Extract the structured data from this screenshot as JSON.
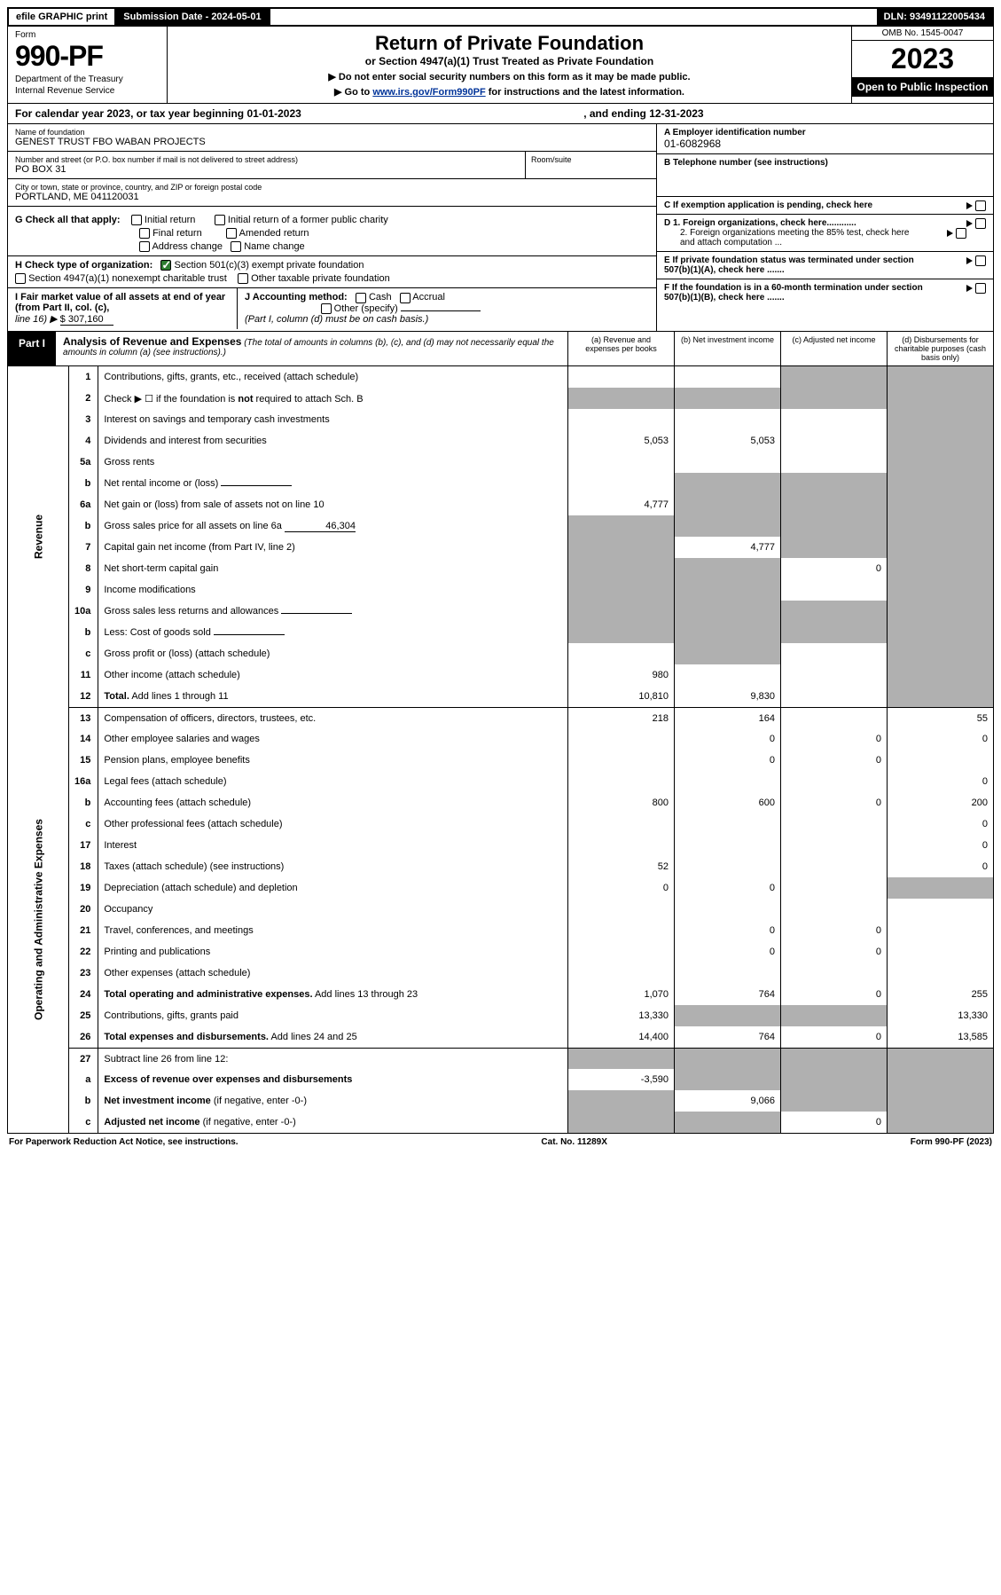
{
  "topbar": {
    "efile": "efile GRAPHIC print",
    "sub_label": "Submission Date - 2024-05-01",
    "dln": "DLN: 93491122005434"
  },
  "header": {
    "form_label": "Form",
    "form_num": "990-PF",
    "dept1": "Department of the Treasury",
    "dept2": "Internal Revenue Service",
    "title": "Return of Private Foundation",
    "subtitle": "or Section 4947(a)(1) Trust Treated as Private Foundation",
    "note1": "▶ Do not enter social security numbers on this form as it may be made public.",
    "note2_pre": "▶ Go to ",
    "note2_link": "www.irs.gov/Form990PF",
    "note2_post": " for instructions and the latest information.",
    "omb": "OMB No. 1545-0047",
    "year": "2023",
    "open": "Open to Public Inspection"
  },
  "calrow": {
    "pre": "For calendar year 2023, or tax year beginning 01-01-2023",
    "post": ", and ending 12-31-2023"
  },
  "info": {
    "name_lbl": "Name of foundation",
    "name_val": "GENEST TRUST FBO WABAN PROJECTS",
    "addr_lbl": "Number and street (or P.O. box number if mail is not delivered to street address)",
    "room_lbl": "Room/suite",
    "addr_val": "PO BOX 31",
    "city_lbl": "City or town, state or province, country, and ZIP or foreign postal code",
    "city_val": "PORTLAND, ME  041120031",
    "a_lbl": "A Employer identification number",
    "a_val": "01-6082968",
    "b_lbl": "B Telephone number (see instructions)",
    "c_lbl": "C If exemption application is pending, check here",
    "d1_lbl": "D 1. Foreign organizations, check here............",
    "d2_lbl": "2. Foreign organizations meeting the 85% test, check here and attach computation ...",
    "e_lbl": "E  If private foundation status was terminated under section 507(b)(1)(A), check here .......",
    "f_lbl": "F  If the foundation is in a 60-month termination under section 507(b)(1)(B), check here ......."
  },
  "g": {
    "g_lbl": "G Check all that apply:",
    "g_opts": [
      "Initial return",
      "Final return",
      "Address change",
      "Initial return of a former public charity",
      "Amended return",
      "Name change"
    ],
    "h_lbl": "H Check type of organization:",
    "h1": "Section 501(c)(3) exempt private foundation",
    "h2": "Section 4947(a)(1) nonexempt charitable trust",
    "h3": "Other taxable private foundation",
    "i_lbl": "I Fair market value of all assets at end of year (from Part II, col. (c),",
    "i_line": "line 16) ▶",
    "i_val": "$  307,160",
    "j_lbl": "J Accounting method:",
    "j_opts": [
      "Cash",
      "Accrual"
    ],
    "j_other": "Other (specify)",
    "j_note": "(Part I, column (d) must be on cash basis.)"
  },
  "part": {
    "label": "Part I",
    "title": "Analysis of Revenue and Expenses",
    "title_note": "(The total of amounts in columns (b), (c), and (d) may not necessarily equal the amounts in column (a) (see instructions).)",
    "col_a": "(a)   Revenue and expenses per books",
    "col_b": "(b)   Net investment income",
    "col_c": "(c)   Adjusted net income",
    "col_d": "(d)  Disbursements for charitable purposes (cash basis only)"
  },
  "side": {
    "rev": "Revenue",
    "exp": "Operating and Administrative Expenses"
  },
  "rows": [
    {
      "n": "1",
      "d": "Contributions, gifts, grants, etc., received (attach schedule)",
      "a": "",
      "b": "",
      "c": "",
      "dd": "",
      "shC": true,
      "shD": true
    },
    {
      "n": "2",
      "d": "Check ▶ ☐ if the foundation is <b>not</b> required to attach Sch. B",
      "a": "",
      "b": "",
      "c": "",
      "dd": "",
      "shA": true,
      "shB": true,
      "shC": true,
      "shD": true
    },
    {
      "n": "3",
      "d": "Interest on savings and temporary cash investments",
      "a": "",
      "b": "",
      "c": "",
      "dd": "",
      "shD": true
    },
    {
      "n": "4",
      "d": "Dividends and interest from securities",
      "a": "5,053",
      "b": "5,053",
      "c": "",
      "dd": "",
      "shD": true
    },
    {
      "n": "5a",
      "d": "Gross rents",
      "a": "",
      "b": "",
      "c": "",
      "dd": "",
      "shD": true
    },
    {
      "n": "b",
      "d": "Net rental income or (loss)",
      "a": "",
      "b": "",
      "c": "",
      "dd": "",
      "shA": false,
      "shB": true,
      "shC": true,
      "shD": true,
      "inline": true
    },
    {
      "n": "6a",
      "d": "Net gain or (loss) from sale of assets not on line 10",
      "a": "4,777",
      "b": "",
      "c": "",
      "dd": "",
      "shB": true,
      "shC": true,
      "shD": true
    },
    {
      "n": "b",
      "d": "Gross sales price for all assets on line 6a",
      "a": "",
      "b": "",
      "c": "",
      "dd": "",
      "inline_val": "46,304",
      "shA": true,
      "shB": true,
      "shC": true,
      "shD": true
    },
    {
      "n": "7",
      "d": "Capital gain net income (from Part IV, line 2)",
      "a": "",
      "b": "4,777",
      "c": "",
      "dd": "",
      "shA": true,
      "shC": true,
      "shD": true
    },
    {
      "n": "8",
      "d": "Net short-term capital gain",
      "a": "",
      "b": "",
      "c": "0",
      "dd": "",
      "shA": true,
      "shB": true,
      "shD": true
    },
    {
      "n": "9",
      "d": "Income modifications",
      "a": "",
      "b": "",
      "c": "",
      "dd": "",
      "shA": true,
      "shB": true,
      "shD": true
    },
    {
      "n": "10a",
      "d": "Gross sales less returns and allowances",
      "a": "",
      "b": "",
      "c": "",
      "dd": "",
      "inline": true,
      "shA": true,
      "shB": true,
      "shC": true,
      "shD": true
    },
    {
      "n": "b",
      "d": "Less: Cost of goods sold",
      "a": "",
      "b": "",
      "c": "",
      "dd": "",
      "inline": true,
      "shA": true,
      "shB": true,
      "shC": true,
      "shD": true
    },
    {
      "n": "c",
      "d": "Gross profit or (loss) (attach schedule)",
      "a": "",
      "b": "",
      "c": "",
      "dd": "",
      "shA": false,
      "shB": true,
      "shD": true
    },
    {
      "n": "11",
      "d": "Other income (attach schedule)",
      "a": "980",
      "b": "",
      "c": "",
      "dd": "",
      "shD": true
    },
    {
      "n": "12",
      "d": "<b>Total.</b> Add lines 1 through 11",
      "a": "10,810",
      "b": "9,830",
      "c": "",
      "dd": "",
      "shD": true,
      "sep": true
    },
    {
      "n": "13",
      "d": "Compensation of officers, directors, trustees, etc.",
      "a": "218",
      "b": "164",
      "c": "",
      "dd": "55"
    },
    {
      "n": "14",
      "d": "Other employee salaries and wages",
      "a": "",
      "b": "0",
      "c": "0",
      "dd": "0"
    },
    {
      "n": "15",
      "d": "Pension plans, employee benefits",
      "a": "",
      "b": "0",
      "c": "0",
      "dd": ""
    },
    {
      "n": "16a",
      "d": "Legal fees (attach schedule)",
      "a": "",
      "b": "",
      "c": "",
      "dd": "0"
    },
    {
      "n": "b",
      "d": "Accounting fees (attach schedule)",
      "a": "800",
      "b": "600",
      "c": "0",
      "dd": "200"
    },
    {
      "n": "c",
      "d": "Other professional fees (attach schedule)",
      "a": "",
      "b": "",
      "c": "",
      "dd": "0"
    },
    {
      "n": "17",
      "d": "Interest",
      "a": "",
      "b": "",
      "c": "",
      "dd": "0"
    },
    {
      "n": "18",
      "d": "Taxes (attach schedule) (see instructions)",
      "a": "52",
      "b": "",
      "c": "",
      "dd": "0"
    },
    {
      "n": "19",
      "d": "Depreciation (attach schedule) and depletion",
      "a": "0",
      "b": "0",
      "c": "",
      "dd": "",
      "shD": true
    },
    {
      "n": "20",
      "d": "Occupancy",
      "a": "",
      "b": "",
      "c": "",
      "dd": ""
    },
    {
      "n": "21",
      "d": "Travel, conferences, and meetings",
      "a": "",
      "b": "0",
      "c": "0",
      "dd": ""
    },
    {
      "n": "22",
      "d": "Printing and publications",
      "a": "",
      "b": "0",
      "c": "0",
      "dd": ""
    },
    {
      "n": "23",
      "d": "Other expenses (attach schedule)",
      "a": "",
      "b": "",
      "c": "",
      "dd": ""
    },
    {
      "n": "24",
      "d": "<b>Total operating and administrative expenses.</b> Add lines 13 through 23",
      "a": "1,070",
      "b": "764",
      "c": "0",
      "dd": "255"
    },
    {
      "n": "25",
      "d": "Contributions, gifts, grants paid",
      "a": "13,330",
      "b": "",
      "c": "",
      "dd": "13,330",
      "shB": true,
      "shC": true
    },
    {
      "n": "26",
      "d": "<b>Total expenses and disbursements.</b> Add lines 24 and 25",
      "a": "14,400",
      "b": "764",
      "c": "0",
      "dd": "13,585",
      "sep": true
    },
    {
      "n": "27",
      "d": "Subtract line 26 from line 12:",
      "a": "",
      "b": "",
      "c": "",
      "dd": "",
      "shA": true,
      "shB": true,
      "shC": true,
      "shD": true
    },
    {
      "n": "a",
      "d": "<b>Excess of revenue over expenses and disbursements</b>",
      "a": "-3,590",
      "b": "",
      "c": "",
      "dd": "",
      "shB": true,
      "shC": true,
      "shD": true
    },
    {
      "n": "b",
      "d": "<b>Net investment income</b> (if negative, enter -0-)",
      "a": "",
      "b": "9,066",
      "c": "",
      "dd": "",
      "shA": true,
      "shC": true,
      "shD": true
    },
    {
      "n": "c",
      "d": "<b>Adjusted net income</b> (if negative, enter -0-)",
      "a": "",
      "b": "",
      "c": "0",
      "dd": "",
      "shA": true,
      "shB": true,
      "shD": true
    }
  ],
  "footer": {
    "left": "For Paperwork Reduction Act Notice, see instructions.",
    "mid": "Cat. No. 11289X",
    "right": "Form 990-PF (2023)"
  }
}
